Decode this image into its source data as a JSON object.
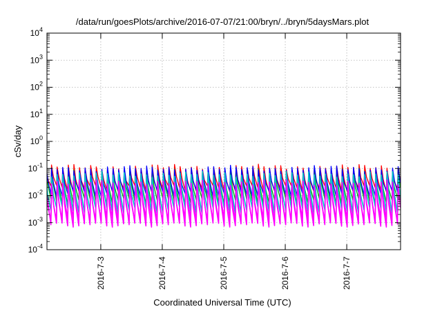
{
  "chart_data": {
    "type": "line",
    "title": "/data/run/goesPlots/archive/2016-07-07/21:00/bryn/../bryn/5daysMars.plot",
    "xlabel": "Coordinated Universal Time (UTC)",
    "ylabel": "cSv/day",
    "yscale": "log",
    "ylim": [
      0.0001,
      10000
    ],
    "yticks": [
      {
        "value": 0.0001,
        "base": "10",
        "exp": "-4"
      },
      {
        "value": 0.001,
        "base": "10",
        "exp": "-3"
      },
      {
        "value": 0.01,
        "base": "10",
        "exp": "-2"
      },
      {
        "value": 0.1,
        "base": "10",
        "exp": "-1"
      },
      {
        "value": 1,
        "base": "10",
        "exp": "0"
      },
      {
        "value": 10,
        "base": "10",
        "exp": "1"
      },
      {
        "value": 100,
        "base": "10",
        "exp": "2"
      },
      {
        "value": 1000,
        "base": "10",
        "exp": "3"
      },
      {
        "value": 10000,
        "base": "10",
        "exp": "4"
      }
    ],
    "xlim": [
      "2016-07-02 03:00",
      "2016-07-07 21:00"
    ],
    "xticks": [
      "2016-7-3",
      "2016-7-4",
      "2016-7-5",
      "2016-7-6",
      "2016-7-7"
    ],
    "grid": true,
    "cycles_per_day": 11,
    "series": [
      {
        "color": "#ff0000",
        "peak": 0.11,
        "min": 0.018
      },
      {
        "color": "#00b000",
        "peak": 0.085,
        "min": 0.006
      },
      {
        "color": "#0000ff",
        "peak": 0.1,
        "min": 0.012
      },
      {
        "color": "#ff00ff",
        "peak": 0.045,
        "min": 0.0011
      },
      {
        "color": "#00c8c8",
        "peak": 0.06,
        "min": 0.003
      },
      {
        "color": "#ff00ff",
        "peak": 0.03,
        "min": 0.0009
      }
    ]
  }
}
